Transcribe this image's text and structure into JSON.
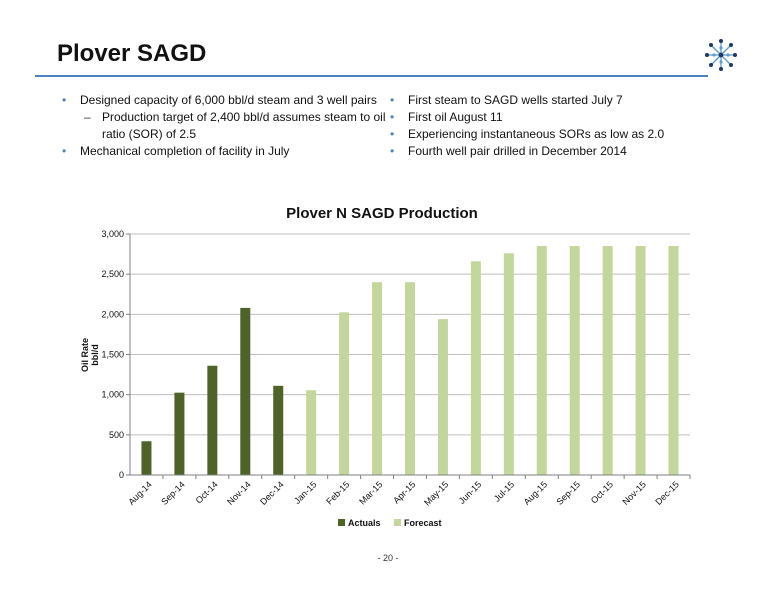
{
  "slide": {
    "title": "Plover SAGD",
    "page_number": "- 20 -"
  },
  "colors": {
    "accent": "#4f81bd",
    "actuals": "#4f6228",
    "forecast": "#c3d69b"
  },
  "bullets_left": [
    {
      "level": 1,
      "marker": "•",
      "text": "Designed capacity of 6,000 bbl/d steam and 3 well pairs"
    },
    {
      "level": 2,
      "marker": "–",
      "text": "Production target of 2,400 bbl/d assumes steam to oil ratio (SOR) of 2.5"
    },
    {
      "level": 1,
      "marker": "•",
      "text": "Mechanical completion of facility in July"
    }
  ],
  "bullets_right": [
    {
      "level": 1,
      "marker": "•",
      "text": "First steam to SAGD wells started July 7"
    },
    {
      "level": 1,
      "marker": "•",
      "text": "First oil August 11"
    },
    {
      "level": 1,
      "marker": "•",
      "text": "Experiencing instantaneous SORs as low as 2.0"
    },
    {
      "level": 1,
      "marker": "•",
      "text": "Fourth well pair drilled in December 2014"
    }
  ],
  "chart_data": {
    "type": "bar",
    "title": "Plover N SAGD Production",
    "ylabel_lines": [
      "Oil Rate",
      "bbl/d"
    ],
    "xlabel": "",
    "ylim": [
      0,
      3000
    ],
    "yticks": [
      0,
      500,
      1000,
      1500,
      2000,
      2500,
      3000
    ],
    "ytick_labels": [
      "0",
      "500",
      "1,000",
      "1,500",
      "2,000",
      "2,500",
      "3,000"
    ],
    "grid": true,
    "legend_position": "bottom",
    "categories": [
      "Aug-14",
      "Sep-14",
      "Oct-14",
      "Nov-14",
      "Dec-14",
      "Jan-15",
      "Feb-15",
      "Mar-15",
      "Apr-15",
      "May-15",
      "Jun-15",
      "Jul-15",
      "Aug-15",
      "Sep-15",
      "Oct-15",
      "Nov-15",
      "Dec-15"
    ],
    "series": [
      {
        "name": "Actuals",
        "color": "#4f6228",
        "values": [
          420,
          1025,
          1360,
          2080,
          1110,
          null,
          null,
          null,
          null,
          null,
          null,
          null,
          null,
          null,
          null,
          null,
          null
        ]
      },
      {
        "name": "Forecast",
        "color": "#c3d69b",
        "values": [
          null,
          null,
          null,
          null,
          null,
          1055,
          2025,
          2400,
          2400,
          1940,
          2660,
          2760,
          2850,
          2850,
          2850,
          2850,
          2850
        ]
      }
    ]
  }
}
